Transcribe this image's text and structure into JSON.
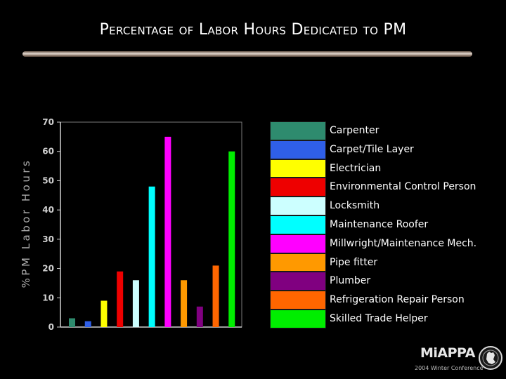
{
  "slide": {
    "title": "Percentage of Labor Hours Dedicated to PM"
  },
  "logo": {
    "name": "MiAPPA",
    "subtitle": "2004 Winter Conference"
  },
  "chart_data": {
    "type": "bar",
    "title": "",
    "xlabel": "",
    "ylabel": "%PM Labor Hours",
    "ylim": [
      0,
      70
    ],
    "yticks": [
      0,
      10,
      20,
      30,
      40,
      50,
      60,
      70
    ],
    "grid": false,
    "legend_position": "right",
    "series": [
      {
        "name": "Carpenter",
        "value": 3,
        "color": "#2e8b6e"
      },
      {
        "name": "Carpet/Tile Layer",
        "value": 2,
        "color": "#2f5fe8"
      },
      {
        "name": "Electrician",
        "value": 9,
        "color": "#ffff00"
      },
      {
        "name": "Environmental Control Person",
        "value": 19,
        "color": "#ee0000"
      },
      {
        "name": "Locksmith",
        "value": 16,
        "color": "#ccffff"
      },
      {
        "name": "Maintenance Roofer",
        "value": 48,
        "color": "#00ffff"
      },
      {
        "name": "Millwright/Maintenance Mech.",
        "value": 65,
        "color": "#ff00ff"
      },
      {
        "name": "Pipe fitter",
        "value": 16,
        "color": "#ff9900"
      },
      {
        "name": "Plumber",
        "value": 7,
        "color": "#800080"
      },
      {
        "name": "Refrigeration Repair Person",
        "value": 21,
        "color": "#ff6600"
      },
      {
        "name": "Skilled Trade Helper",
        "value": 60,
        "color": "#00ee00"
      }
    ]
  }
}
